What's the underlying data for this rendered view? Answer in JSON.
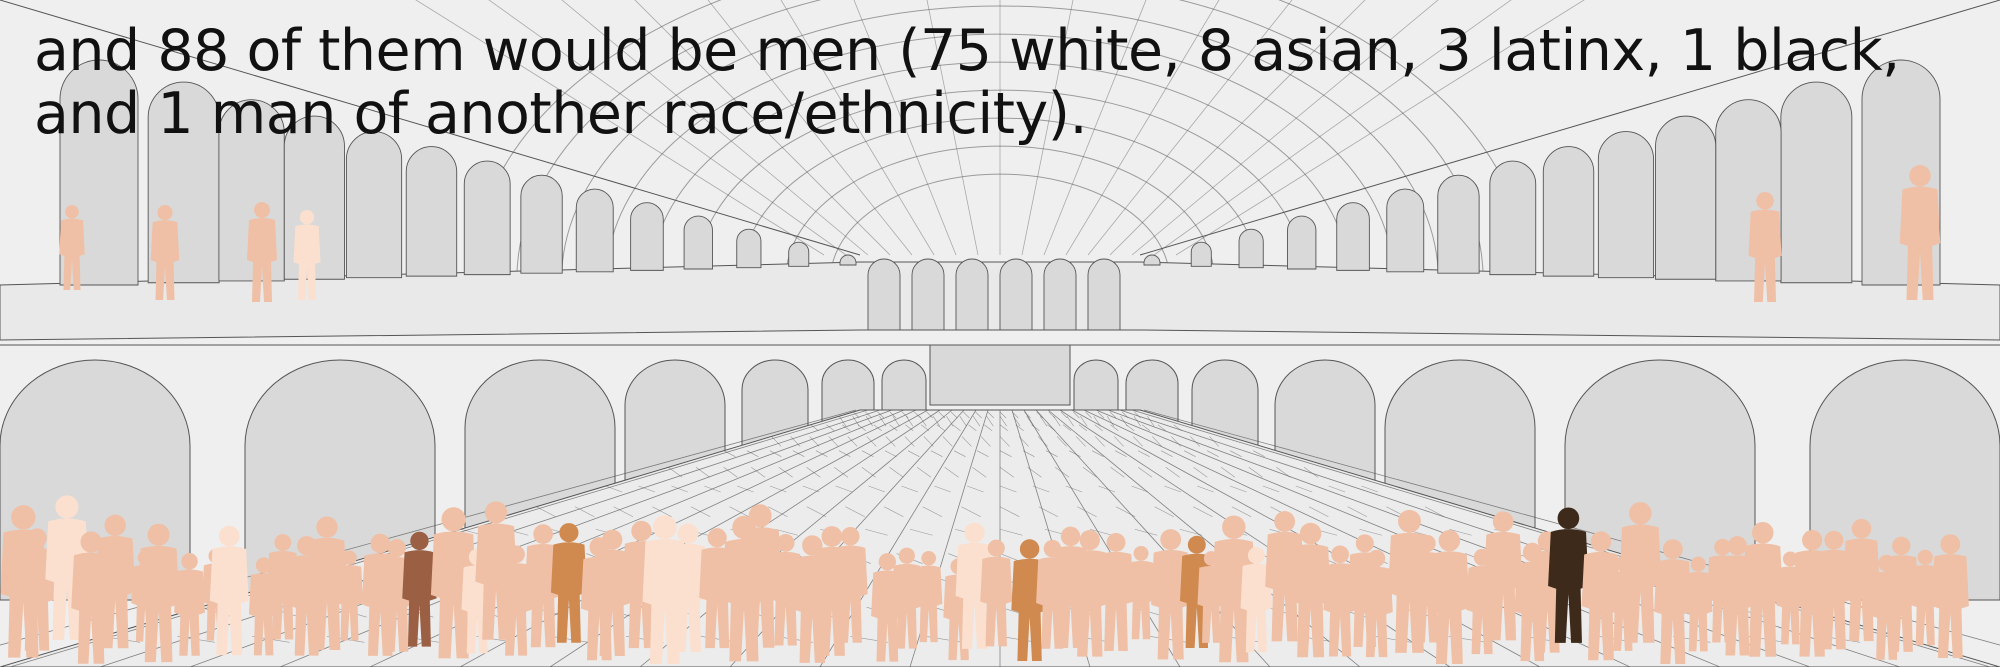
{
  "caption": {
    "text": "and 88 of them would be men (75 white, 8 asian, 3 latinx, 1 black, and 1 man of another race/ethnicity)."
  },
  "crowd": {
    "total": 88,
    "groups": [
      {
        "label": "white",
        "count": 75,
        "color": "#efc0a6"
      },
      {
        "label": "asian",
        "count": 8,
        "color": "#fbe0cf"
      },
      {
        "label": "latinx",
        "count": 3,
        "color": "#d0894f"
      },
      {
        "label": "black",
        "count": 1,
        "color": "#3d2a1a"
      },
      {
        "label": "another race/ethnicity",
        "count": 1,
        "color": "#9b5f43"
      }
    ]
  },
  "scene": {
    "wall_color": "#efefef",
    "arch_color": "#d9d9d9",
    "line_color": "#555555"
  }
}
